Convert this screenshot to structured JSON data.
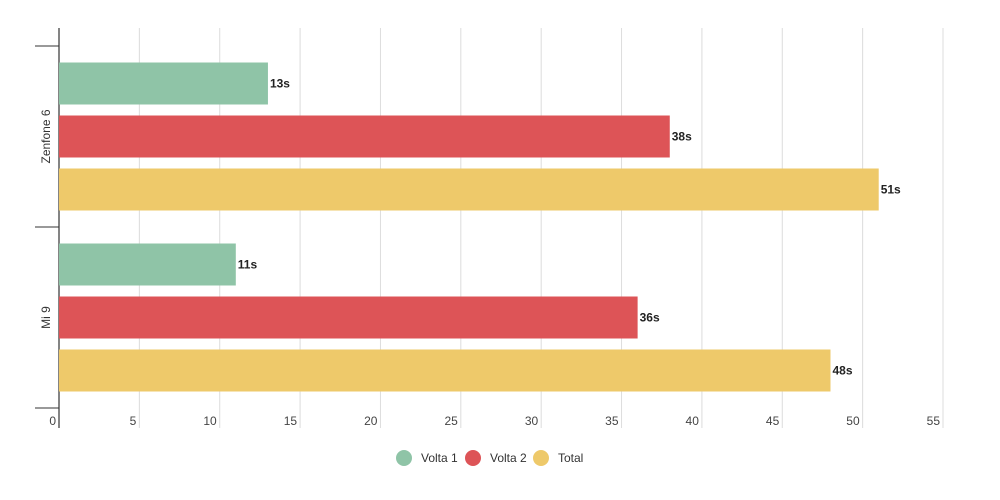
{
  "chart_data": {
    "type": "bar",
    "orientation": "horizontal",
    "categories": [
      "Zenfone 6",
      "Mi 9"
    ],
    "series": [
      {
        "name": "Volta 1",
        "color": "#8fc4a7",
        "values": [
          13,
          11
        ]
      },
      {
        "name": "Volta 2",
        "color": "#dd5457",
        "values": [
          38,
          36
        ]
      },
      {
        "name": "Total",
        "color": "#eec96a",
        "values": [
          51,
          48
        ]
      }
    ],
    "value_suffix": "s",
    "xlim": [
      0,
      55
    ],
    "xticks": [
      0,
      5,
      10,
      15,
      20,
      25,
      30,
      35,
      40,
      45,
      50,
      55
    ],
    "grid": true,
    "legend": "bottom",
    "title": "",
    "xlabel": "",
    "ylabel": ""
  }
}
